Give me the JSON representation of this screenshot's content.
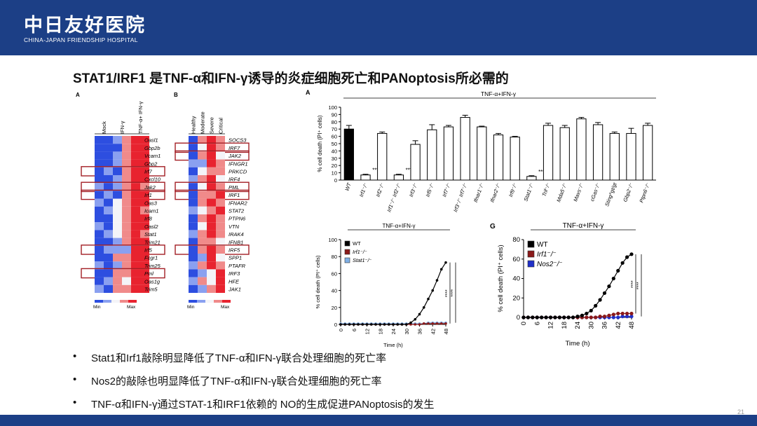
{
  "header": {
    "logo_cn": "中日友好医院",
    "logo_en": "CHINA-JAPAN FRIENDSHIP HOSPITAL"
  },
  "slide": {
    "title": "STAT1/IRF1 是TNF-α和IFN-γ诱导的炎症细胞死亡和PANoptosis所必需的",
    "page": "21"
  },
  "bullets": [
    "Stat1和Irf1敲除明显降低了TNF-α和IFN-γ联合处理细胞的死亡率",
    "Nos2的敲除也明显降低了TNF-α和IFN-γ联合处理细胞的死亡率",
    "TNF-α和IFN-γ通过STAT-1和IRF1依赖的  NO的生成促进PANoptosis的发生"
  ],
  "colors": {
    "navy": "#1c3f86",
    "heat_red": "#e8232f",
    "heat_blue": "#2d4ee0",
    "box_red": "#a31f25",
    "irf1_red": "#8b1a1a",
    "stat1_blue": "#7fb0e6",
    "nos2_blue": "#2030c8"
  },
  "chart_data": [
    {
      "type": "heatmap",
      "panel": "A",
      "columns": [
        "Mock",
        "IFN-γ",
        "TNF-α+ IFN-γ"
      ],
      "genes": [
        "Oasl1",
        "Gbp2b",
        "Vcam1",
        "Gbp2",
        "Irf7",
        "Cxcl10",
        "Jak2",
        "Irf1",
        "Oas3",
        "Icam1",
        "Irf8",
        "Oasl2",
        "Stat1",
        "Trim21",
        "Irf5",
        "Fcgr1",
        "Trim25",
        "Pml",
        "Oas1g",
        "Trim5"
      ],
      "values": [
        [
          -2,
          -2,
          -1,
          1,
          2,
          2
        ],
        [
          -2,
          -2,
          -2,
          1,
          2,
          2
        ],
        [
          -2,
          -2,
          -1,
          1,
          2,
          2
        ],
        [
          -2,
          -2,
          -1,
          1,
          2,
          2
        ],
        [
          -2,
          -1,
          -2,
          1,
          2,
          2
        ],
        [
          -2,
          -2,
          -1,
          1,
          2,
          2
        ],
        [
          -1,
          -2,
          -1,
          1,
          2,
          1
        ],
        [
          -2,
          -1,
          -2,
          1,
          2,
          2
        ],
        [
          -1,
          -2,
          0,
          1,
          2,
          2
        ],
        [
          -2,
          -1,
          0,
          1,
          2,
          1
        ],
        [
          -2,
          -2,
          0,
          1,
          2,
          2
        ],
        [
          -1,
          -2,
          0,
          1,
          2,
          2
        ],
        [
          -2,
          -1,
          0,
          1,
          2,
          1
        ],
        [
          -2,
          -2,
          -1,
          1,
          2,
          2
        ],
        [
          -2,
          -1,
          -1,
          -1,
          2,
          2
        ],
        [
          -2,
          -2,
          1,
          1,
          2,
          2
        ],
        [
          -1,
          -2,
          -1,
          1,
          2,
          2
        ],
        [
          -2,
          -2,
          1,
          1,
          2,
          2
        ],
        [
          -2,
          -1,
          1,
          0,
          2,
          2
        ],
        [
          -1,
          -2,
          1,
          1,
          2,
          2
        ]
      ],
      "highlighted": [
        "Irf7",
        "Jak2",
        "Irf1",
        "Irf5",
        "Pml"
      ],
      "scale": [
        "Min",
        "Max"
      ]
    },
    {
      "type": "heatmap",
      "panel": "B",
      "columns": [
        "Healthy",
        "Moderate",
        "Severe",
        "Critical"
      ],
      "genes": [
        "SOCS3",
        "IRF7",
        "JAK2",
        "IFNGR1",
        "PRKCD",
        "IRF4",
        "PML",
        "IRF1",
        "IFNAR2",
        "STAT2",
        "PTPN6",
        "VTN",
        "IRAK4",
        "IFNB1",
        "IRF5",
        "SPP1",
        "PTAFR",
        "IRF3",
        "HFE",
        "JAK1"
      ],
      "values": [
        [
          -2,
          1,
          2,
          1
        ],
        [
          -2,
          0,
          2,
          1
        ],
        [
          -2,
          1,
          2,
          0
        ],
        [
          -1,
          -1,
          2,
          1
        ],
        [
          -2,
          0,
          1,
          1
        ],
        [
          -1,
          1,
          2,
          0
        ],
        [
          -2,
          0,
          2,
          1
        ],
        [
          -2,
          1,
          1,
          2
        ],
        [
          -2,
          1,
          2,
          1
        ],
        [
          -1,
          0,
          1,
          2
        ],
        [
          -2,
          1,
          2,
          1
        ],
        [
          -2,
          0,
          2,
          1
        ],
        [
          -1,
          1,
          2,
          1
        ],
        [
          -2,
          1,
          1,
          0
        ],
        [
          -2,
          1,
          2,
          1
        ],
        [
          -2,
          -1,
          2,
          0
        ],
        [
          -1,
          1,
          2,
          1
        ],
        [
          -2,
          -1,
          0,
          2
        ],
        [
          -1,
          1,
          0,
          2
        ],
        [
          -2,
          -1,
          1,
          2
        ]
      ],
      "highlighted": [
        "IRF7",
        "JAK2",
        "PML",
        "IRF1",
        "IRF5"
      ],
      "scale": [
        "Min",
        "Max"
      ]
    },
    {
      "type": "bar",
      "panel": "A",
      "title": "TNF-α+IFN-γ",
      "ylabel": "% cell death (PI⁺ cells)",
      "ylim": [
        0,
        100
      ],
      "yticks": [
        0,
        10,
        20,
        30,
        40,
        50,
        60,
        70,
        80,
        90,
        100
      ],
      "categories": [
        "WT",
        "Irf1⁻/⁻",
        "Irf2⁻/⁻",
        "Irf1⁻/⁻ Irf2⁻/⁻",
        "Irf3⁻/⁻",
        "Irf5⁻/⁻",
        "Irf7⁻/⁻",
        "Irf3⁻/⁻ Irf7⁻/⁻",
        "Ifnar1⁻/⁻",
        "Ifnar2⁻/⁻",
        "Irf9⁻/⁻",
        "Stat1⁻/⁻",
        "Trif⁻/⁻",
        "Mda5⁻/⁻",
        "Mavs⁻/⁻",
        "cGas⁻/⁻",
        "Sting^gt/gt",
        "Gbp2⁻/⁻",
        "Ptpn6⁻/⁻"
      ],
      "values": [
        70,
        7,
        64,
        7,
        49,
        69,
        73,
        86,
        73,
        62,
        59,
        5,
        75,
        72,
        84,
        76,
        64,
        64,
        75
      ],
      "errors": [
        5,
        1,
        2,
        1,
        5,
        7,
        2,
        3,
        1,
        2,
        1,
        1,
        3,
        3,
        2,
        3,
        2,
        7,
        3
      ],
      "significance": {
        "Irf1⁻/⁻": "****",
        "Irf1⁻/⁻ Irf2⁻/⁻": "****",
        "Stat1⁻/⁻": "****"
      }
    },
    {
      "type": "line",
      "title": "TNF-α+IFN-γ",
      "xlabel": "Time (h)",
      "ylabel": "% cell death (PI⁺ cells)",
      "xlim": [
        0,
        48
      ],
      "ylim": [
        0,
        100
      ],
      "yticks": [
        0,
        20,
        40,
        60,
        80,
        100
      ],
      "x": [
        0,
        2,
        4,
        6,
        8,
        10,
        12,
        14,
        16,
        18,
        20,
        22,
        24,
        26,
        28,
        30,
        32,
        34,
        36,
        38,
        40,
        42,
        44,
        46,
        48
      ],
      "series": [
        {
          "name": "WT",
          "values": [
            0,
            0,
            0,
            0,
            0,
            0,
            0,
            0,
            0,
            0,
            0,
            0,
            0,
            0,
            0,
            0,
            2,
            6,
            12,
            20,
            30,
            40,
            52,
            65,
            73
          ]
        },
        {
          "name": "Irf1⁻/⁻",
          "values": [
            0,
            0,
            0,
            0,
            0,
            0,
            0,
            0,
            0,
            0,
            0,
            0,
            0,
            0,
            0,
            0,
            0,
            0,
            0,
            1,
            1,
            1,
            1,
            1,
            1
          ]
        },
        {
          "name": "Stat1⁻/⁻",
          "values": [
            1,
            1,
            1,
            1,
            1,
            1,
            1,
            1,
            1,
            1,
            1,
            1,
            1,
            1,
            1,
            1,
            1,
            1,
            1,
            1,
            2,
            2,
            2,
            2,
            2
          ]
        }
      ],
      "annotations": [
        "****",
        "****"
      ]
    },
    {
      "type": "line",
      "panel": "G",
      "title": "TNF-α+IFN-γ",
      "xlabel": "Time (h)",
      "ylabel": "% cell death (PI⁺ cells)",
      "xlim": [
        0,
        48
      ],
      "ylim": [
        0,
        80
      ],
      "yticks": [
        0,
        20,
        40,
        60,
        80
      ],
      "x": [
        0,
        2,
        4,
        6,
        8,
        10,
        12,
        14,
        16,
        18,
        20,
        22,
        24,
        26,
        28,
        30,
        32,
        34,
        36,
        38,
        40,
        42,
        44,
        46,
        48
      ],
      "series": [
        {
          "name": "WT",
          "values": [
            0,
            0,
            0,
            0,
            0,
            0,
            0,
            0,
            0,
            0,
            0,
            0,
            1,
            2,
            4,
            7,
            12,
            18,
            25,
            32,
            40,
            48,
            56,
            62,
            65
          ]
        },
        {
          "name": "Irf1⁻/⁻",
          "values": [
            0,
            0,
            0,
            0,
            0,
            0,
            0,
            0,
            0,
            0,
            0,
            0,
            0,
            0,
            0,
            0,
            0,
            1,
            1,
            2,
            3,
            4,
            4,
            4,
            4
          ]
        },
        {
          "name": "Nos2⁻/⁻",
          "values": [
            0,
            0,
            0,
            0,
            0,
            0,
            0,
            0,
            0,
            0,
            0,
            0,
            0,
            0,
            0,
            0,
            0,
            0,
            0,
            0,
            0,
            0,
            1,
            1,
            1
          ]
        }
      ],
      "annotations": [
        "****",
        "****"
      ]
    }
  ]
}
